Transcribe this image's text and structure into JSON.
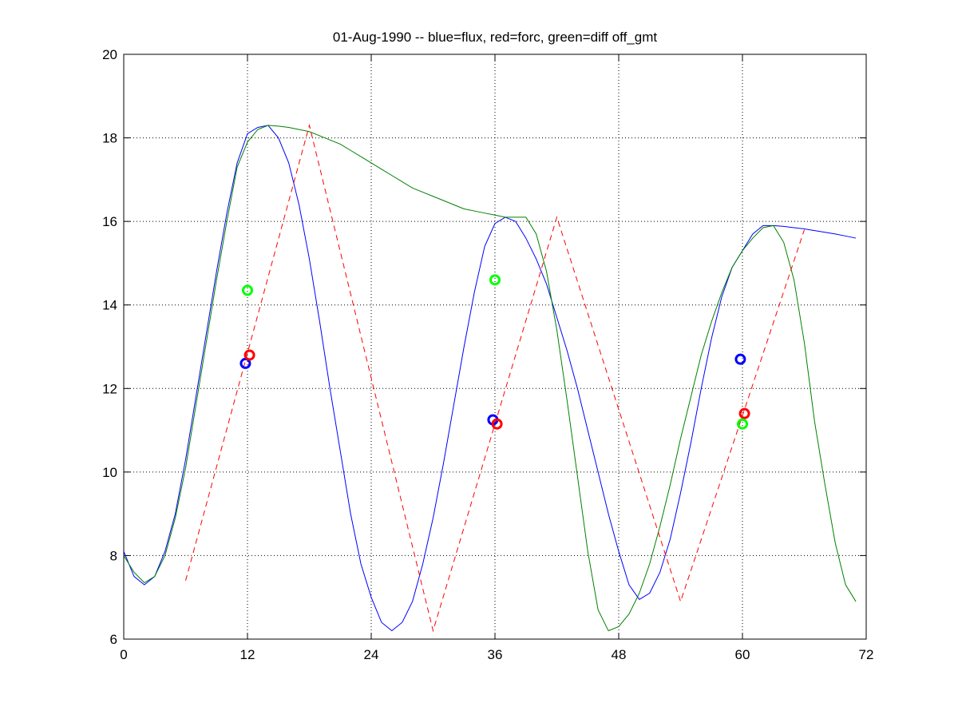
{
  "chart_data": {
    "type": "line",
    "title": "01-Aug-1990 -- blue=flux, red=forc, green=diff off_gmt",
    "x": [
      0,
      1,
      2,
      3,
      4,
      5,
      6,
      7,
      8,
      9,
      10,
      11,
      12,
      13,
      14,
      15,
      16,
      17,
      18,
      19,
      20,
      21,
      22,
      23,
      24,
      25,
      26,
      27,
      28,
      29,
      30,
      31,
      32,
      33,
      34,
      35,
      36,
      37,
      38,
      39,
      40,
      41,
      42,
      43,
      44,
      45,
      46,
      47,
      48,
      49,
      50,
      51,
      52,
      53,
      54,
      55,
      56,
      57,
      58,
      59,
      60,
      61,
      62,
      63,
      64,
      65,
      66,
      67,
      68,
      69,
      70,
      71
    ],
    "series": [
      {
        "color": "#0000ff",
        "style": "solid",
        "values": [
          8.1,
          7.5,
          7.3,
          7.5,
          8.1,
          9.0,
          10.3,
          11.8,
          13.3,
          14.8,
          16.2,
          17.4,
          18.1,
          18.25,
          18.3,
          18.0,
          17.4,
          16.4,
          15.1,
          13.6,
          12.0,
          10.5,
          9.0,
          7.8,
          7.0,
          6.4,
          6.2,
          6.4,
          6.9,
          7.8,
          8.9,
          10.2,
          11.6,
          13.0,
          14.3,
          15.4,
          15.95,
          16.1,
          16.0,
          15.6,
          15.1,
          14.5,
          13.7,
          12.9,
          12.0,
          11.0,
          10.0,
          9.0,
          8.1,
          7.3,
          6.95,
          7.1,
          7.6,
          8.4,
          9.5,
          10.7,
          12.0,
          13.2,
          14.2,
          14.9,
          15.3,
          15.7,
          15.9,
          15.9,
          15.88,
          15.85,
          15.82,
          15.78,
          15.74,
          15.7,
          15.65,
          15.6
        ]
      },
      {
        "color": "#008000",
        "style": "solid",
        "values": [
          8.0,
          7.6,
          7.35,
          7.5,
          8.0,
          8.9,
          10.1,
          11.6,
          13.1,
          14.6,
          16.0,
          17.3,
          17.9,
          18.2,
          18.3,
          18.28,
          18.25,
          18.2,
          18.15,
          18.05,
          17.95,
          17.85,
          17.7,
          17.55,
          17.4,
          17.25,
          17.1,
          16.95,
          16.8,
          16.7,
          16.6,
          16.5,
          16.4,
          16.3,
          16.25,
          16.2,
          16.15,
          16.1,
          16.1,
          16.1,
          15.7,
          14.8,
          13.4,
          11.7,
          9.9,
          8.1,
          6.7,
          6.2,
          6.3,
          6.6,
          7.1,
          7.8,
          8.7,
          9.7,
          10.8,
          11.8,
          12.8,
          13.6,
          14.3,
          14.9,
          15.3,
          15.6,
          15.85,
          15.9,
          15.5,
          14.6,
          13.1,
          11.2,
          9.7,
          8.3,
          7.3,
          6.9
        ]
      },
      {
        "color": "#ff0000",
        "style": "dashed",
        "x": [
          6,
          18,
          30,
          42,
          54,
          66
        ],
        "values": [
          7.4,
          18.3,
          6.2,
          16.1,
          6.9,
          15.8
        ]
      },
      {
        "color": "#0000ff",
        "style": "circle",
        "x": [
          11.8,
          35.8,
          59.8
        ],
        "values": [
          12.6,
          11.25,
          12.7
        ]
      },
      {
        "color": "#ff0000",
        "style": "circle",
        "x": [
          12.2,
          36.2,
          60.2
        ],
        "values": [
          12.8,
          11.15,
          11.4
        ]
      },
      {
        "color": "#00ff00",
        "style": "circle",
        "x": [
          12,
          36,
          60
        ],
        "values": [
          14.35,
          14.6,
          11.15
        ]
      }
    ],
    "xlim": [
      0,
      72
    ],
    "xticks": [
      0,
      12,
      24,
      36,
      48,
      60,
      72
    ],
    "ylim": [
      6,
      20
    ],
    "yticks": [
      6,
      8,
      10,
      12,
      14,
      16,
      18,
      20
    ],
    "grid": true
  }
}
